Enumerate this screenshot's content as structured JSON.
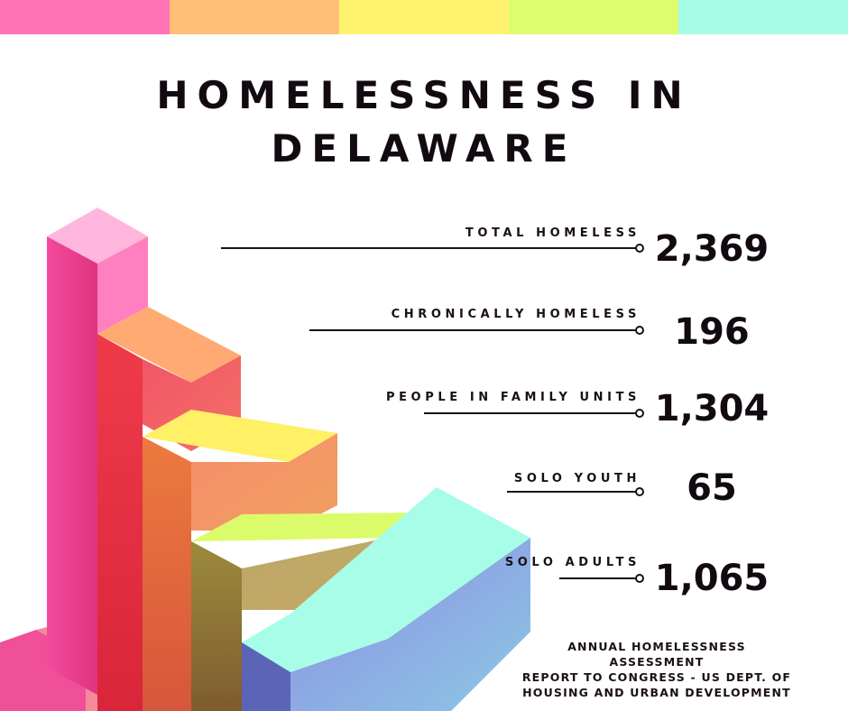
{
  "colors": {
    "top_bar": [
      "#ff72b6",
      "#ffbe78",
      "#fff36e",
      "#ddfd6e",
      "#a5fde6"
    ],
    "text": "#120a10"
  },
  "header": {
    "title_line1": "HOMELESSNESS IN",
    "title_line2": "DELAWARE"
  },
  "chart_data": {
    "type": "table",
    "title": "HOMELESSNESS IN DELAWARE",
    "rows": [
      {
        "label": "TOTAL HOMELESS",
        "value": "2,369",
        "number": 2369
      },
      {
        "label": "CHRONICALLY HOMELESS",
        "value": "196",
        "number": 196
      },
      {
        "label": "PEOPLE IN FAMILY UNITS",
        "value": "1,304",
        "number": 1304
      },
      {
        "label": "SOLO YOUTH",
        "value": "65",
        "number": 65
      },
      {
        "label": "SOLO ADULTS",
        "value": "1,065",
        "number": 1065
      }
    ]
  },
  "source": {
    "line1": "ANNUAL HOMELESSNESS ASSESSMENT",
    "line2": "REPORT TO CONGRESS - US DEPT. OF",
    "line3": "HOUSING AND URBAN DEVELOPMENT"
  }
}
